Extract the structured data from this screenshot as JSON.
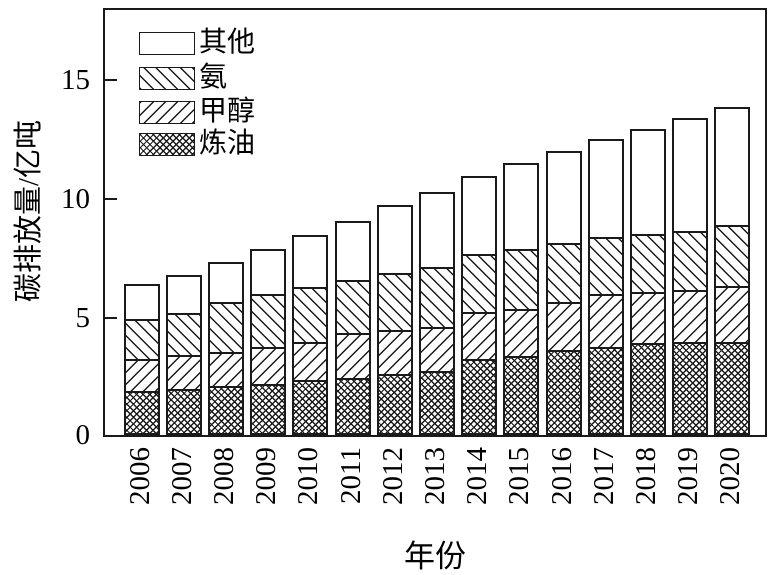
{
  "chart_data": {
    "type": "bar",
    "stacked": true,
    "title": "",
    "xlabel": "年份",
    "ylabel": "碳排放量/亿吨",
    "categories": [
      "2006",
      "2007",
      "2008",
      "2009",
      "2010",
      "2011",
      "2012",
      "2013",
      "2014",
      "2015",
      "2016",
      "2017",
      "2018",
      "2019",
      "2020"
    ],
    "series": [
      {
        "name": "炼油",
        "hatch": "crosshatch",
        "values": [
          1.85,
          1.95,
          2.05,
          2.15,
          2.3,
          2.4,
          2.55,
          2.7,
          3.2,
          3.3,
          3.55,
          3.7,
          3.85,
          3.9,
          3.9
        ]
      },
      {
        "name": "甲醇",
        "hatch": "forward-slash",
        "values": [
          1.35,
          1.4,
          1.45,
          1.55,
          1.6,
          1.9,
          1.85,
          1.85,
          1.95,
          2.0,
          2.05,
          2.2,
          2.15,
          2.2,
          2.35
        ]
      },
      {
        "name": "氨",
        "hatch": "back-slash",
        "values": [
          1.65,
          1.75,
          2.1,
          2.2,
          2.3,
          2.2,
          2.4,
          2.5,
          2.45,
          2.5,
          2.45,
          2.4,
          2.45,
          2.45,
          2.55
        ]
      },
      {
        "name": "其他",
        "hatch": "none",
        "values": [
          1.5,
          1.6,
          1.65,
          1.9,
          2.2,
          2.5,
          2.85,
          3.15,
          3.25,
          3.6,
          3.85,
          4.1,
          4.4,
          4.75,
          4.95
        ]
      }
    ],
    "totals": [
      6.35,
      6.7,
      7.25,
      7.8,
      8.4,
      9.0,
      9.65,
      10.2,
      10.85,
      11.4,
      11.9,
      12.4,
      12.85,
      13.3,
      13.75
    ],
    "yticks": [
      0,
      5,
      10,
      15
    ],
    "ylim": [
      0,
      18
    ],
    "grid": false,
    "legend": {
      "position": "top-left",
      "items": [
        {
          "label": "其他",
          "hatch": "none"
        },
        {
          "label": "氨",
          "hatch": "back-slash"
        },
        {
          "label": "甲醇",
          "hatch": "forward-slash"
        },
        {
          "label": "炼油",
          "hatch": "crosshatch"
        }
      ]
    }
  }
}
